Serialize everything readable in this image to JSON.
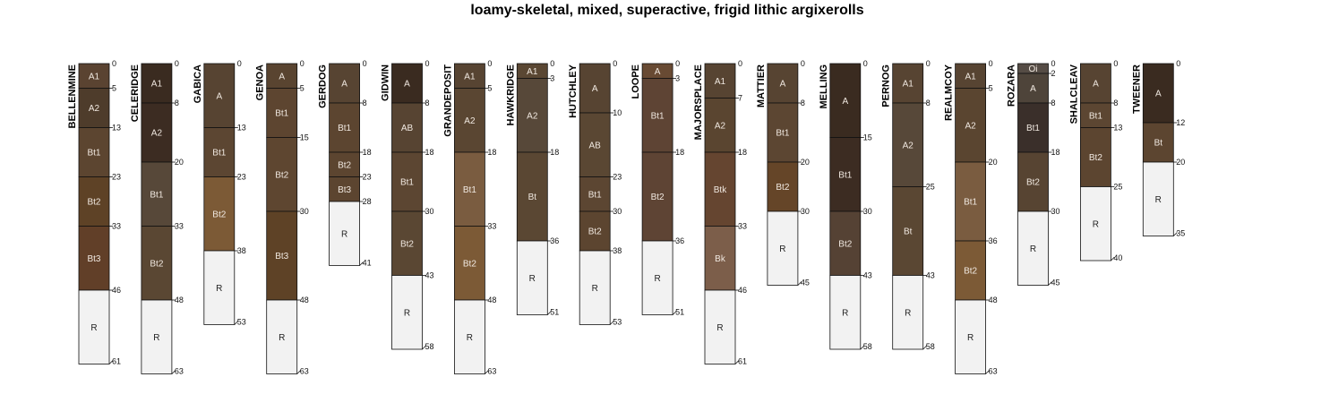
{
  "chart_data": {
    "type": "soil-profile",
    "title": "loamy-skeletal, mixed, superactive, frigid lithic argixerolls",
    "depth_units": "cm",
    "ylim": [
      0,
      63
    ],
    "profiles": [
      {
        "name": "BELLENMINE",
        "horizons": [
          {
            "name": "A1",
            "top": 0,
            "bottom": 5,
            "color": "#5a4331"
          },
          {
            "name": "A2",
            "top": 5,
            "bottom": 13,
            "color": "#4e3c2b"
          },
          {
            "name": "Bt1",
            "top": 13,
            "bottom": 23,
            "color": "#5c4530"
          },
          {
            "name": "Bt2",
            "top": 23,
            "bottom": 33,
            "color": "#5e4226"
          },
          {
            "name": "Bt3",
            "top": 33,
            "bottom": 46,
            "color": "#613f28"
          },
          {
            "name": "R",
            "top": 46,
            "bottom": 61,
            "color": "#f2f2f2"
          }
        ]
      },
      {
        "name": "CELERIDGE",
        "horizons": [
          {
            "name": "A1",
            "top": 0,
            "bottom": 8,
            "color": "#3a2b20"
          },
          {
            "name": "A2",
            "top": 8,
            "bottom": 20,
            "color": "#3c2c22"
          },
          {
            "name": "Bt1",
            "top": 20,
            "bottom": 33,
            "color": "#574839"
          },
          {
            "name": "Bt2",
            "top": 33,
            "bottom": 48,
            "color": "#5a4733"
          },
          {
            "name": "R",
            "top": 48,
            "bottom": 63,
            "color": "#f2f2f2"
          }
        ]
      },
      {
        "name": "GABICA",
        "horizons": [
          {
            "name": "A",
            "top": 0,
            "bottom": 13,
            "color": "#574432"
          },
          {
            "name": "Bt1",
            "top": 13,
            "bottom": 23,
            "color": "#5c4632"
          },
          {
            "name": "Bt2",
            "top": 23,
            "bottom": 38,
            "color": "#7c5a36"
          },
          {
            "name": "R",
            "top": 38,
            "bottom": 53,
            "color": "#f2f2f2"
          }
        ]
      },
      {
        "name": "GENOA",
        "horizons": [
          {
            "name": "A",
            "top": 0,
            "bottom": 5,
            "color": "#594430"
          },
          {
            "name": "Bt1",
            "top": 5,
            "bottom": 15,
            "color": "#5d4530"
          },
          {
            "name": "Bt2",
            "top": 15,
            "bottom": 30,
            "color": "#5e4630"
          },
          {
            "name": "Bt3",
            "top": 30,
            "bottom": 48,
            "color": "#5e4226"
          },
          {
            "name": "R",
            "top": 48,
            "bottom": 63,
            "color": "#f2f2f2"
          }
        ]
      },
      {
        "name": "GERDOG",
        "horizons": [
          {
            "name": "A",
            "top": 0,
            "bottom": 8,
            "color": "#574432"
          },
          {
            "name": "Bt1",
            "top": 8,
            "bottom": 18,
            "color": "#5c4530"
          },
          {
            "name": "Bt2",
            "top": 18,
            "bottom": 23,
            "color": "#5c4530"
          },
          {
            "name": "Bt3",
            "top": 23,
            "bottom": 28,
            "color": "#5c4530"
          },
          {
            "name": "R",
            "top": 28,
            "bottom": 41,
            "color": "#f2f2f2"
          }
        ]
      },
      {
        "name": "GIDWIN",
        "horizons": [
          {
            "name": "A",
            "top": 0,
            "bottom": 8,
            "color": "#3a2b20"
          },
          {
            "name": "AB",
            "top": 8,
            "bottom": 18,
            "color": "#574432"
          },
          {
            "name": "Bt1",
            "top": 18,
            "bottom": 30,
            "color": "#5c4632"
          },
          {
            "name": "Bt2",
            "top": 30,
            "bottom": 43,
            "color": "#5a4733"
          },
          {
            "name": "R",
            "top": 43,
            "bottom": 58,
            "color": "#f2f2f2"
          }
        ]
      },
      {
        "name": "GRANDEPOSIT",
        "horizons": [
          {
            "name": "A1",
            "top": 0,
            "bottom": 5,
            "color": "#574432"
          },
          {
            "name": "A2",
            "top": 5,
            "bottom": 18,
            "color": "#5a4632"
          },
          {
            "name": "Bt1",
            "top": 18,
            "bottom": 33,
            "color": "#7a5c40"
          },
          {
            "name": "Bt2",
            "top": 33,
            "bottom": 48,
            "color": "#7c5a36"
          },
          {
            "name": "R",
            "top": 48,
            "bottom": 63,
            "color": "#f2f2f2"
          }
        ]
      },
      {
        "name": "HAWKRIDGE",
        "horizons": [
          {
            "name": "A1",
            "top": 0,
            "bottom": 3,
            "color": "#5a4733"
          },
          {
            "name": "A2",
            "top": 3,
            "bottom": 18,
            "color": "#574839"
          },
          {
            "name": "Bt",
            "top": 18,
            "bottom": 36,
            "color": "#5a4733"
          },
          {
            "name": "R",
            "top": 36,
            "bottom": 51,
            "color": "#f2f2f2"
          }
        ]
      },
      {
        "name": "HUTCHLEY",
        "horizons": [
          {
            "name": "A",
            "top": 0,
            "bottom": 10,
            "color": "#574432"
          },
          {
            "name": "AB",
            "top": 10,
            "bottom": 23,
            "color": "#5a4733"
          },
          {
            "name": "Bt1",
            "top": 23,
            "bottom": 30,
            "color": "#5c4632"
          },
          {
            "name": "Bt2",
            "top": 30,
            "bottom": 38,
            "color": "#5c4530"
          },
          {
            "name": "R",
            "top": 38,
            "bottom": 53,
            "color": "#f2f2f2"
          }
        ]
      },
      {
        "name": "LOOPE",
        "horizons": [
          {
            "name": "A",
            "top": 0,
            "bottom": 3,
            "color": "#684a33"
          },
          {
            "name": "Bt1",
            "top": 3,
            "bottom": 18,
            "color": "#5e4434"
          },
          {
            "name": "Bt2",
            "top": 18,
            "bottom": 36,
            "color": "#5e4434"
          },
          {
            "name": "R",
            "top": 36,
            "bottom": 51,
            "color": "#f2f2f2"
          }
        ]
      },
      {
        "name": "MAJORSPLACE",
        "horizons": [
          {
            "name": "A1",
            "top": 0,
            "bottom": 7,
            "color": "#574432"
          },
          {
            "name": "A2",
            "top": 7,
            "bottom": 18,
            "color": "#5a4530"
          },
          {
            "name": "Btk",
            "top": 18,
            "bottom": 33,
            "color": "#654530"
          },
          {
            "name": "Bk",
            "top": 33,
            "bottom": 46,
            "color": "#7c5e4a"
          },
          {
            "name": "R",
            "top": 46,
            "bottom": 61,
            "color": "#f2f2f2"
          }
        ]
      },
      {
        "name": "MATTIER",
        "horizons": [
          {
            "name": "A",
            "top": 0,
            "bottom": 8,
            "color": "#574432"
          },
          {
            "name": "Bt1",
            "top": 8,
            "bottom": 20,
            "color": "#5c4632"
          },
          {
            "name": "Bt2",
            "top": 20,
            "bottom": 30,
            "color": "#654528"
          },
          {
            "name": "R",
            "top": 30,
            "bottom": 45,
            "color": "#f2f2f2"
          }
        ]
      },
      {
        "name": "MELLING",
        "horizons": [
          {
            "name": "A",
            "top": 0,
            "bottom": 15,
            "color": "#3a2b20"
          },
          {
            "name": "Bt1",
            "top": 15,
            "bottom": 30,
            "color": "#3c2c22"
          },
          {
            "name": "Bt2",
            "top": 30,
            "bottom": 43,
            "color": "#554234"
          },
          {
            "name": "R",
            "top": 43,
            "bottom": 58,
            "color": "#f2f2f2"
          }
        ]
      },
      {
        "name": "PERNOG",
        "horizons": [
          {
            "name": "A1",
            "top": 0,
            "bottom": 8,
            "color": "#574432"
          },
          {
            "name": "A2",
            "top": 8,
            "bottom": 25,
            "color": "#574839"
          },
          {
            "name": "Bt",
            "top": 25,
            "bottom": 43,
            "color": "#5a4733"
          },
          {
            "name": "R",
            "top": 43,
            "bottom": 58,
            "color": "#f2f2f2"
          }
        ]
      },
      {
        "name": "REALMCOY",
        "horizons": [
          {
            "name": "A1",
            "top": 0,
            "bottom": 5,
            "color": "#574432"
          },
          {
            "name": "A2",
            "top": 5,
            "bottom": 20,
            "color": "#5a4530"
          },
          {
            "name": "Bt1",
            "top": 20,
            "bottom": 36,
            "color": "#7a5c40"
          },
          {
            "name": "Bt2",
            "top": 36,
            "bottom": 48,
            "color": "#7c5a36"
          },
          {
            "name": "R",
            "top": 48,
            "bottom": 63,
            "color": "#f2f2f2"
          }
        ]
      },
      {
        "name": "ROZARA",
        "horizons": [
          {
            "name": "Oi",
            "top": 0,
            "bottom": 2,
            "color": "#554c45"
          },
          {
            "name": "A",
            "top": 2,
            "bottom": 8,
            "color": "#4e443a"
          },
          {
            "name": "Bt1",
            "top": 8,
            "bottom": 18,
            "color": "#3a2f2a"
          },
          {
            "name": "Bt2",
            "top": 18,
            "bottom": 30,
            "color": "#574432"
          },
          {
            "name": "R",
            "top": 30,
            "bottom": 45,
            "color": "#f2f2f2"
          }
        ]
      },
      {
        "name": "SHALCLEAV",
        "horizons": [
          {
            "name": "A",
            "top": 0,
            "bottom": 8,
            "color": "#574432"
          },
          {
            "name": "Bt1",
            "top": 8,
            "bottom": 13,
            "color": "#5c4632"
          },
          {
            "name": "Bt2",
            "top": 13,
            "bottom": 25,
            "color": "#5c4530"
          },
          {
            "name": "R",
            "top": 25,
            "bottom": 40,
            "color": "#f2f2f2"
          }
        ]
      },
      {
        "name": "TWEENER",
        "horizons": [
          {
            "name": "A",
            "top": 0,
            "bottom": 12,
            "color": "#3a2b20"
          },
          {
            "name": "Bt",
            "top": 12,
            "bottom": 20,
            "color": "#5c4530"
          },
          {
            "name": "R",
            "top": 20,
            "bottom": 35,
            "color": "#f2f2f2"
          }
        ]
      }
    ]
  }
}
